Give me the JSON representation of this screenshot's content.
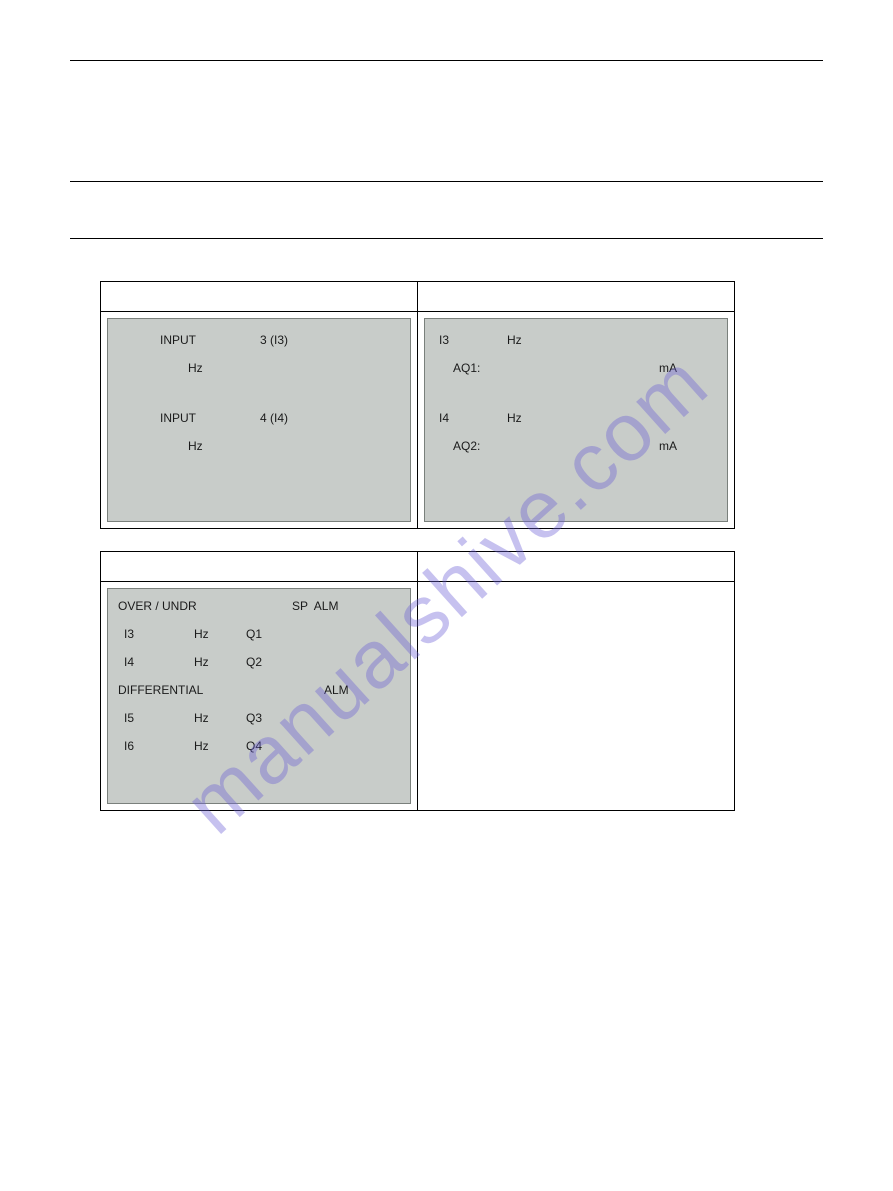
{
  "watermark": "manualshive.com",
  "colors": {
    "panel_bg": "#c8ccc9",
    "panel_border": "#7a807c",
    "page_bg": "#ffffff",
    "watermark_color": "#6b5fd6"
  },
  "table1": {
    "left_panel": {
      "row1_label": "INPUT",
      "row1_value": "3 (I3)",
      "row1_unit": "Hz",
      "row2_label": "INPUT",
      "row2_value": "4 (I4)",
      "row2_unit": "Hz"
    },
    "right_panel": {
      "r1_id": "I3",
      "r1_unit": "Hz",
      "r1_out": "AQ1:",
      "r1_out_unit": "mA",
      "r2_id": "I4",
      "r2_unit": "Hz",
      "r2_out": "AQ2:",
      "r2_out_unit": "mA"
    }
  },
  "table2": {
    "left_panel": {
      "header": "OVER / UNDR",
      "header_cols": "SP  ALM",
      "rows_a": [
        {
          "id": "I3",
          "unit": "Hz",
          "q": "Q1"
        },
        {
          "id": "I4",
          "unit": "Hz",
          "q": "Q2"
        }
      ],
      "mid_header": "DIFFERENTIAL",
      "mid_col": "ALM",
      "rows_b": [
        {
          "id": "I5",
          "unit": "Hz",
          "q": "Q3"
        },
        {
          "id": "I6",
          "unit": "Hz",
          "q": "Q4"
        }
      ]
    }
  }
}
